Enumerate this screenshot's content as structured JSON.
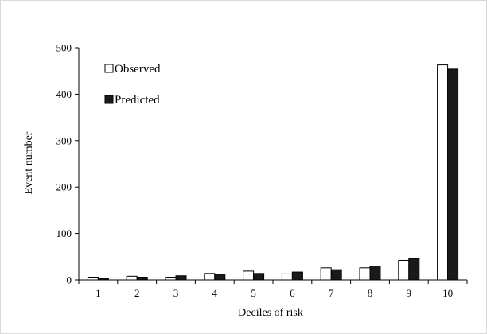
{
  "chart_data": {
    "type": "bar",
    "title": "",
    "xlabel": "Deciles  of risk",
    "ylabel": "Event  number",
    "categories": [
      "1",
      "2",
      "3",
      "4",
      "5",
      "6",
      "7",
      "8",
      "9",
      "10"
    ],
    "ylim": [
      0,
      500
    ],
    "yticks": [
      0,
      100,
      200,
      300,
      400,
      500
    ],
    "grid": false,
    "legend_position": "top-left",
    "series": [
      {
        "name": "Observed",
        "color": "#ffffff",
        "values": [
          6,
          8,
          6,
          14,
          19,
          13,
          26,
          26,
          42,
          463
        ]
      },
      {
        "name": "Predicted",
        "color": "#1a1a1a",
        "values": [
          4,
          6,
          9,
          11,
          14,
          17,
          22,
          30,
          46,
          454
        ]
      }
    ]
  }
}
